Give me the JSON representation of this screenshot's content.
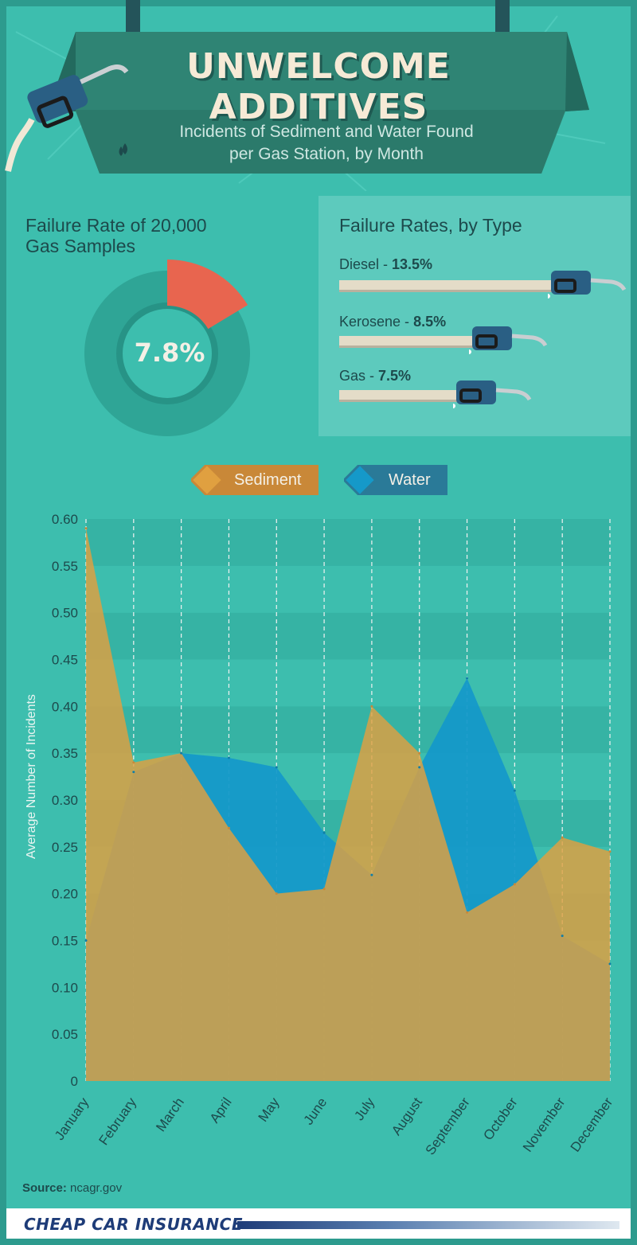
{
  "header": {
    "title": "UNWELCOME ADDITIVES",
    "subtitle_line1": "Incidents of Sediment and Water Found",
    "subtitle_line2": "per Gas Station, by Month"
  },
  "failure_rate": {
    "heading_line1": "Failure Rate of 20,000",
    "heading_line2": "Gas Samples",
    "value_label": "7.8%",
    "value": 7.8
  },
  "failure_by_type": {
    "heading": "Failure Rates, by Type",
    "items": [
      {
        "name": "Diesel - ",
        "value_label": "13.5%",
        "value": 13.5
      },
      {
        "name": "Kerosene - ",
        "value_label": "8.5%",
        "value": 8.5
      },
      {
        "name": "Gas - ",
        "value_label": "7.5%",
        "value": 7.5
      }
    ]
  },
  "colors": {
    "background": "#3dbeae",
    "sediment": "#e0a040",
    "water": "#1599c9",
    "failure_slice": "#e8654f"
  },
  "chart_data": {
    "type": "area",
    "categories": [
      "January",
      "February",
      "March",
      "April",
      "May",
      "June",
      "July",
      "August",
      "September",
      "October",
      "November",
      "December"
    ],
    "series": [
      {
        "name": "Sediment",
        "values": [
          0.59,
          0.34,
          0.35,
          0.27,
          0.2,
          0.205,
          0.4,
          0.35,
          0.18,
          0.21,
          0.26,
          0.245
        ]
      },
      {
        "name": "Water",
        "values": [
          0.15,
          0.33,
          0.35,
          0.345,
          0.335,
          0.265,
          0.22,
          0.335,
          0.43,
          0.31,
          0.155,
          0.125
        ]
      }
    ],
    "ylabel": "Average Number of Incidents",
    "xlabel": "",
    "ylim": [
      0,
      0.6
    ],
    "yticks": [
      "0",
      "0.05",
      "0.10",
      "0.15",
      "0.20",
      "0.25",
      "0.30",
      "0.35",
      "0.40",
      "0.45",
      "0.50",
      "0.55",
      "0.60"
    ],
    "grid": "vertical dashed",
    "legend_position": "top-center"
  },
  "source": {
    "label": "Source:",
    "text": " ncagr.gov"
  },
  "footer": {
    "brand": "CHEAP CAR INSURANCE"
  }
}
